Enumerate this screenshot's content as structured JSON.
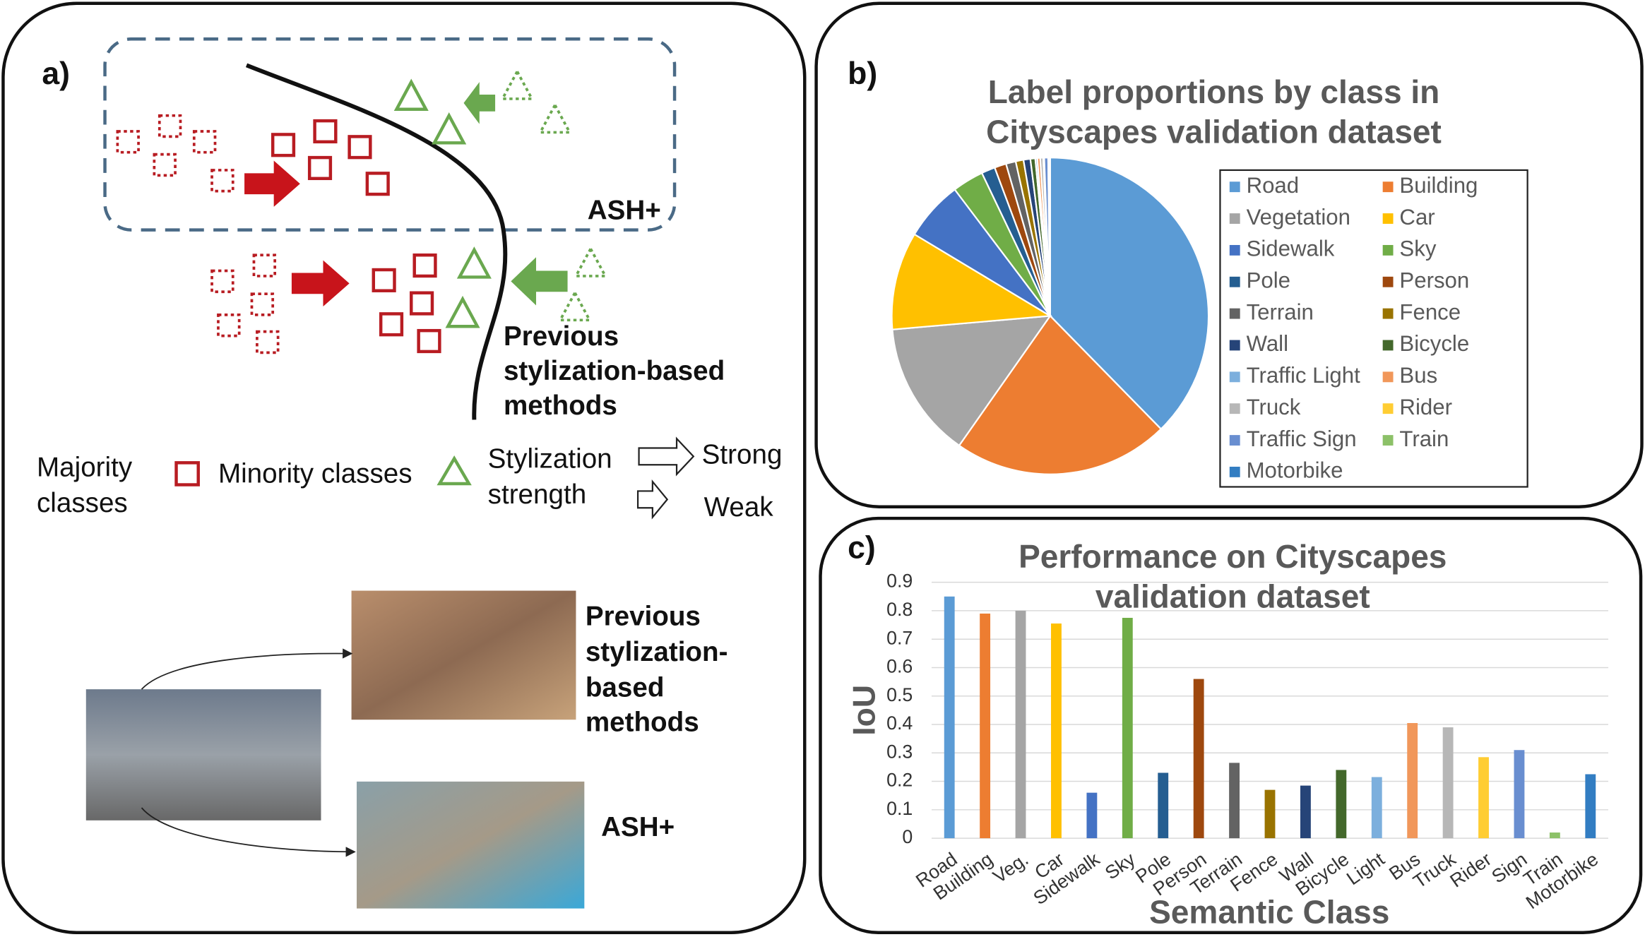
{
  "panel_a": {
    "label": "a)",
    "upper_label": "ASH+",
    "boundary_label": [
      "Previous",
      "stylization-based",
      "methods"
    ],
    "legend": {
      "majority": [
        "Majority",
        "classes"
      ],
      "minority": "Minority classes",
      "strength": [
        "Stylization",
        "strength"
      ],
      "strong": "Strong",
      "weak": "Weak"
    },
    "image_labels": {
      "previous": [
        "Previous",
        "stylization-",
        "based",
        "methods"
      ],
      "ash": "ASH+"
    }
  },
  "panel_labels": {
    "b": "b)",
    "c": "c)"
  },
  "chart_data": [
    {
      "type": "pie",
      "title": [
        "Label proportions by class in",
        "Cityscapes validation dataset"
      ],
      "categories": [
        "Road",
        "Building",
        "Vegetation",
        "Car",
        "Sidewalk",
        "Sky",
        "Pole",
        "Person",
        "Terrain",
        "Fence",
        "Wall",
        "Bicycle",
        "Traffic Light",
        "Bus",
        "Truck",
        "Rider",
        "Traffic Sign",
        "Train",
        "Motorbike"
      ],
      "values": [
        37.7,
        22.1,
        13.9,
        10.0,
        6.1,
        3.2,
        1.4,
        1.2,
        1.0,
        0.8,
        0.7,
        0.5,
        0.2,
        0.3,
        0.3,
        0.1,
        0.4,
        0.1,
        0.1
      ],
      "colors": [
        "#5b9bd5",
        "#ed7d31",
        "#a5a5a5",
        "#ffc000",
        "#4472c4",
        "#70ad47",
        "#255e91",
        "#9e480e",
        "#636363",
        "#997300",
        "#264478",
        "#43682b",
        "#7cafdd",
        "#f1975a",
        "#b7b7b7",
        "#ffcd33",
        "#698ed0",
        "#8cc168",
        "#327dc2"
      ]
    },
    {
      "type": "bar",
      "title": [
        "Performance on Cityscapes",
        "validation dataset"
      ],
      "xlabel": "Semantic Class",
      "ylabel": "IoU",
      "categories": [
        "Road",
        "Building",
        "Veg.",
        "Car",
        "Sidewalk",
        "Sky",
        "Pole",
        "Person",
        "Terrain",
        "Fence",
        "Wall",
        "Bicycle",
        "Light",
        "Bus",
        "Truck",
        "Rider",
        "Sign",
        "Train",
        "Motorbike"
      ],
      "values": [
        0.85,
        0.79,
        0.8,
        0.755,
        0.16,
        0.775,
        0.23,
        0.56,
        0.265,
        0.17,
        0.185,
        0.24,
        0.215,
        0.405,
        0.39,
        0.285,
        0.31,
        0.02,
        0.225
      ],
      "colors": [
        "#5b9bd5",
        "#ed7d31",
        "#a5a5a5",
        "#ffc000",
        "#4472c4",
        "#70ad47",
        "#255e91",
        "#9e480e",
        "#636363",
        "#997300",
        "#264478",
        "#43682b",
        "#7cafdd",
        "#f1975a",
        "#b7b7b7",
        "#ffcd33",
        "#698ed0",
        "#8cc168",
        "#327dc2"
      ],
      "ylim": [
        0,
        0.9
      ],
      "yticks": [
        0,
        0.1,
        0.2,
        0.3,
        0.4,
        0.5,
        0.6,
        0.7,
        0.8,
        0.9
      ],
      "grid": true
    }
  ]
}
